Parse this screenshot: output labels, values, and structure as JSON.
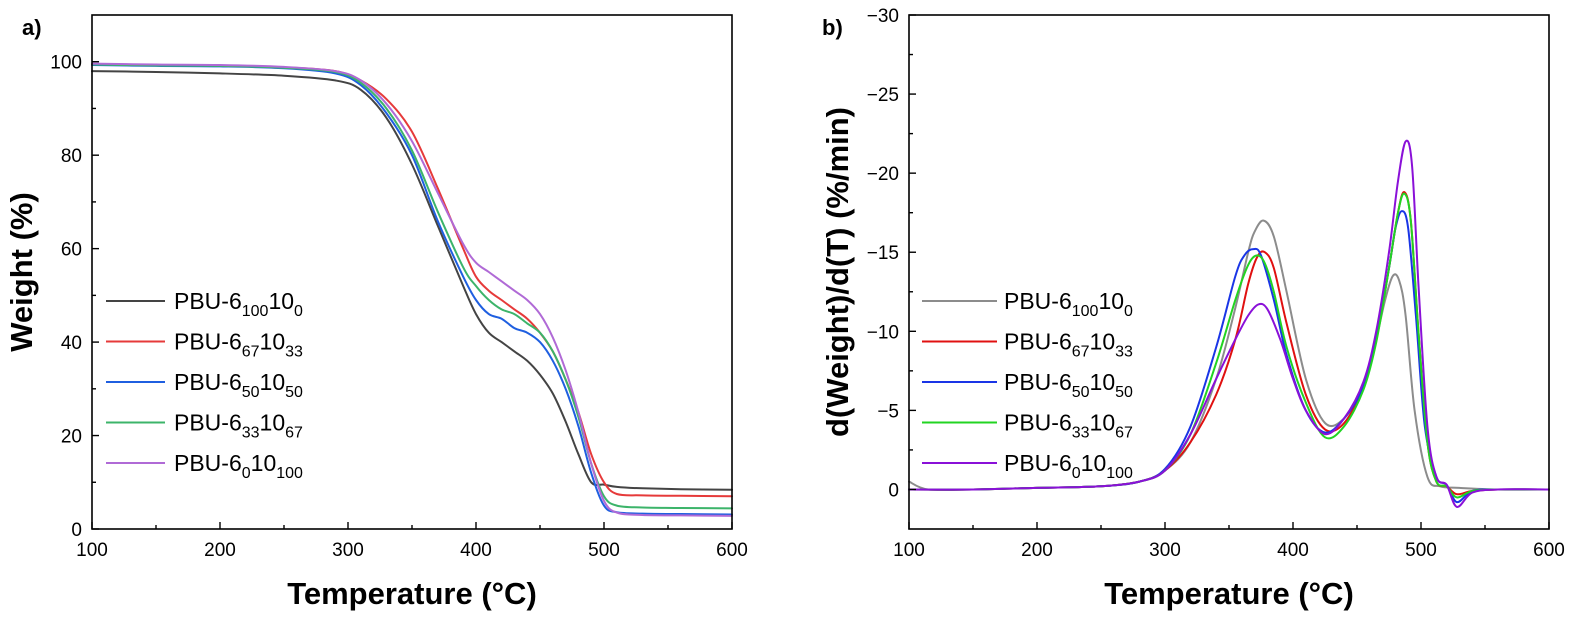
{
  "chart_data": [
    {
      "panel": "a)",
      "type": "line",
      "title": "",
      "xlabel": "Temperature (°C)",
      "ylabel": "Weight (%)",
      "xlim": [
        100,
        600
      ],
      "ylim": [
        0,
        110
      ],
      "xticks": [
        100,
        200,
        300,
        400,
        500,
        600
      ],
      "yticks": [
        0,
        20,
        40,
        60,
        80,
        100
      ],
      "legend_position": "center-left",
      "series": [
        {
          "name": "PBU-6_{100}10_{0}",
          "label_base": "PBU-6",
          "sub1": "100",
          "mid": "10",
          "sub2": "0",
          "color": "#444444",
          "x": [
            100,
            150,
            200,
            250,
            290,
            310,
            330,
            350,
            370,
            390,
            400,
            410,
            420,
            430,
            440,
            450,
            460,
            470,
            480,
            490,
            500,
            510,
            530,
            560,
            600
          ],
          "y": [
            98,
            97.8,
            97.5,
            97,
            96,
            94,
            88,
            78,
            65,
            52,
            46,
            42,
            40,
            38,
            36,
            33,
            29,
            23,
            16,
            10,
            9.5,
            9,
            8.7,
            8.5,
            8.4
          ]
        },
        {
          "name": "PBU-6_{67}10_{33}",
          "label_base": "PBU-6",
          "sub1": "67",
          "mid": "10",
          "sub2": "33",
          "color": "#e63a3a",
          "x": [
            100,
            150,
            200,
            250,
            290,
            310,
            330,
            350,
            370,
            390,
            400,
            410,
            420,
            430,
            440,
            450,
            460,
            470,
            480,
            490,
            500,
            510,
            530,
            560,
            600
          ],
          "y": [
            99.5,
            99.3,
            99.2,
            98.8,
            98,
            96,
            92,
            85,
            73,
            60,
            54,
            51,
            49,
            47,
            45,
            42,
            38,
            32,
            25,
            16,
            10,
            7.5,
            7.2,
            7.1,
            7
          ]
        },
        {
          "name": "PBU-6_{50}10_{50}",
          "label_base": "PBU-6",
          "sub1": "50",
          "mid": "10",
          "sub2": "50",
          "color": "#1f5fe0",
          "x": [
            100,
            150,
            200,
            250,
            290,
            310,
            330,
            350,
            370,
            390,
            400,
            410,
            420,
            430,
            440,
            450,
            460,
            470,
            480,
            490,
            500,
            510,
            530,
            560,
            600
          ],
          "y": [
            99.3,
            99.1,
            99,
            98.6,
            97.5,
            95,
            89,
            80,
            66,
            54,
            49,
            46,
            45,
            43,
            42,
            40,
            36,
            30,
            22,
            12,
            5,
            3.6,
            3.3,
            3.2,
            3.1
          ]
        },
        {
          "name": "PBU-6_{33}10_{67}",
          "label_base": "PBU-6",
          "sub1": "33",
          "mid": "10",
          "sub2": "67",
          "color": "#3cb46a",
          "x": [
            100,
            150,
            200,
            250,
            290,
            310,
            330,
            350,
            370,
            390,
            400,
            410,
            420,
            430,
            440,
            450,
            460,
            470,
            480,
            490,
            500,
            510,
            530,
            560,
            600
          ],
          "y": [
            99.4,
            99.2,
            99.1,
            98.7,
            97.8,
            95.5,
            90,
            81,
            68,
            56,
            52,
            49,
            47,
            46,
            44,
            42,
            38,
            32,
            24,
            14,
            7,
            5,
            4.6,
            4.5,
            4.4
          ]
        },
        {
          "name": "PBU-6_{0}10_{100}",
          "label_base": "PBU-6",
          "sub1": "0",
          "mid": "10",
          "sub2": "100",
          "color": "#b06ad6",
          "x": [
            100,
            150,
            200,
            250,
            290,
            310,
            330,
            350,
            370,
            390,
            400,
            410,
            420,
            430,
            440,
            450,
            460,
            470,
            480,
            490,
            500,
            510,
            530,
            560,
            600
          ],
          "y": [
            99.6,
            99.4,
            99.3,
            98.9,
            98,
            96,
            91,
            83,
            72,
            61,
            57,
            55,
            53,
            51,
            49,
            46,
            41,
            34,
            25,
            14,
            6,
            3.5,
            3,
            2.9,
            2.8
          ]
        }
      ]
    },
    {
      "panel": "b)",
      "type": "line",
      "title": "",
      "xlabel": "Temperature (°C)",
      "ylabel": "d(Weight)/d(T) (%/min)",
      "xlim": [
        100,
        600
      ],
      "ylim": [
        2.5,
        -30
      ],
      "xticks": [
        100,
        200,
        300,
        400,
        500,
        600
      ],
      "yticks": [
        0,
        -5,
        -10,
        -15,
        -20,
        -25,
        -30
      ],
      "ytick_labels": [
        "0",
        "−5",
        "−10",
        "−15",
        "−20",
        "−25",
        "−30"
      ],
      "legend_position": "center-left",
      "series": [
        {
          "name": "PBU-6_{100}10_{0}",
          "label_base": "PBU-6",
          "sub1": "100",
          "mid": "10",
          "sub2": "0",
          "color": "#8c8c8c",
          "x": [
            100,
            115,
            150,
            200,
            250,
            280,
            300,
            320,
            340,
            355,
            365,
            370,
            377,
            385,
            395,
            410,
            425,
            440,
            455,
            465,
            472,
            478,
            483,
            488,
            495,
            505,
            515,
            530,
            560,
            600
          ],
          "y": [
            -0.5,
            0,
            0,
            -0.1,
            -0.2,
            -0.5,
            -1.2,
            -3,
            -7,
            -11.5,
            -15,
            -16.3,
            -17,
            -16,
            -12.5,
            -7,
            -4.2,
            -4.5,
            -6.5,
            -9.5,
            -12,
            -13.5,
            -13.2,
            -11,
            -5,
            -0.8,
            -0.2,
            -0.1,
            0,
            0
          ]
        },
        {
          "name": "PBU-6_{67}10_{33}",
          "label_base": "PBU-6",
          "sub1": "67",
          "mid": "10",
          "sub2": "33",
          "color": "#e01010",
          "x": [
            100,
            150,
            200,
            250,
            280,
            300,
            320,
            340,
            355,
            365,
            372,
            378,
            385,
            395,
            410,
            425,
            440,
            455,
            465,
            475,
            482,
            487,
            492,
            498,
            505,
            512,
            520,
            528,
            540,
            560,
            600
          ],
          "y": [
            0,
            0,
            -0.1,
            -0.2,
            -0.5,
            -1.2,
            -3,
            -6,
            -9.5,
            -13,
            -14.7,
            -15,
            -14,
            -10.5,
            -6,
            -3.8,
            -4.2,
            -6.5,
            -9.5,
            -14,
            -17.5,
            -18.8,
            -17,
            -10,
            -3,
            -0.5,
            -0.2,
            0.3,
            0.1,
            0,
            0
          ]
        },
        {
          "name": "PBU-6_{50}10_{50}",
          "label_base": "PBU-6",
          "sub1": "50",
          "mid": "10",
          "sub2": "50",
          "color": "#1a35e6",
          "x": [
            100,
            150,
            200,
            250,
            280,
            300,
            320,
            340,
            355,
            362,
            369,
            375,
            385,
            395,
            410,
            425,
            440,
            455,
            465,
            475,
            480,
            485,
            490,
            496,
            503,
            512,
            520,
            528,
            540,
            560,
            600
          ],
          "y": [
            0,
            0,
            -0.1,
            -0.2,
            -0.5,
            -1.3,
            -4,
            -9,
            -13.5,
            -14.8,
            -15.2,
            -14.8,
            -12,
            -8.5,
            -5,
            -3.6,
            -4.5,
            -6.5,
            -9.5,
            -14,
            -16.5,
            -17.6,
            -16.5,
            -11,
            -4,
            -0.8,
            -0.3,
            0.8,
            0.1,
            0,
            0
          ]
        },
        {
          "name": "PBU-6_{33}10_{67}",
          "label_base": "PBU-6",
          "sub1": "33",
          "mid": "10",
          "sub2": "67",
          "color": "#22d422",
          "x": [
            100,
            150,
            200,
            250,
            280,
            300,
            320,
            340,
            355,
            365,
            372,
            378,
            385,
            395,
            410,
            425,
            440,
            455,
            465,
            475,
            482,
            487,
            492,
            498,
            505,
            512,
            520,
            528,
            540,
            560,
            600
          ],
          "y": [
            0,
            0,
            -0.1,
            -0.2,
            -0.5,
            -1.2,
            -3.5,
            -8,
            -12,
            -14.2,
            -14.8,
            -14.3,
            -12.5,
            -9,
            -5.5,
            -3.3,
            -4,
            -6.3,
            -9.3,
            -14,
            -17.5,
            -18.7,
            -17,
            -10,
            -3,
            -0.5,
            -0.2,
            0.5,
            0.1,
            0,
            0
          ]
        },
        {
          "name": "PBU-6_{0}10_{100}",
          "label_base": "PBU-6",
          "sub1": "0",
          "mid": "10",
          "sub2": "100",
          "color": "#8a10d8",
          "x": [
            100,
            150,
            200,
            250,
            280,
            300,
            320,
            340,
            355,
            365,
            373,
            380,
            390,
            400,
            410,
            425,
            440,
            455,
            465,
            475,
            482,
            488,
            493,
            498,
            505,
            512,
            520,
            528,
            540,
            560,
            600
          ],
          "y": [
            0,
            0,
            -0.1,
            -0.2,
            -0.5,
            -1.2,
            -3.5,
            -7,
            -9.5,
            -11,
            -11.7,
            -11.4,
            -9.5,
            -7,
            -5,
            -3.5,
            -4.5,
            -6.8,
            -10,
            -15,
            -19.5,
            -22,
            -20.5,
            -13,
            -4,
            -0.8,
            -0.3,
            1.1,
            0.2,
            0,
            0
          ]
        }
      ]
    }
  ]
}
